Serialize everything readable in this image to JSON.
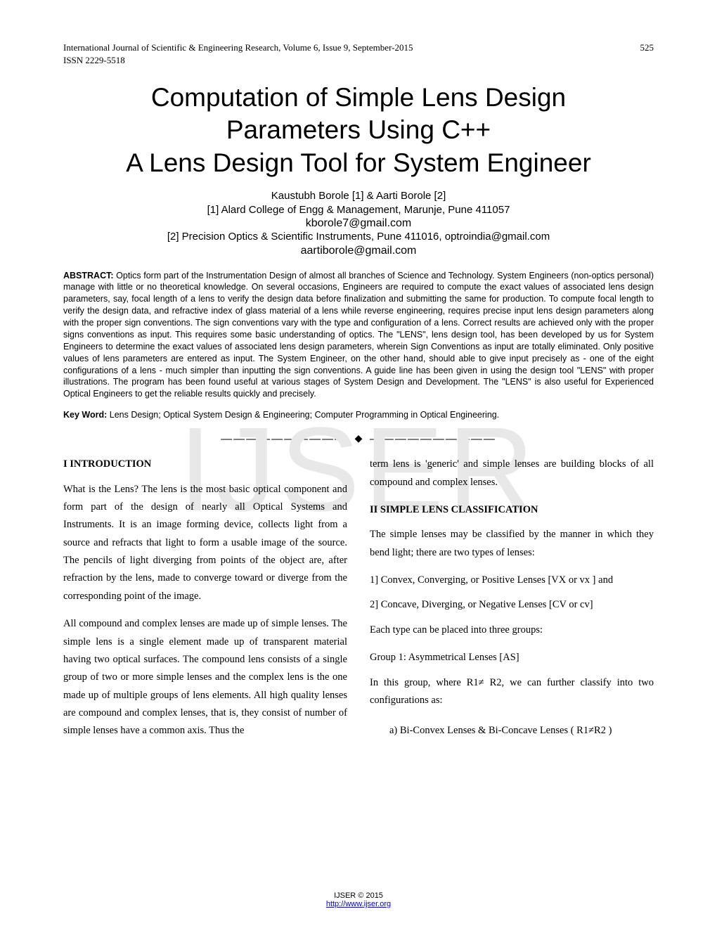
{
  "header": {
    "journal": "International Journal of Scientific & Engineering Research, Volume 6, Issue 9, September-2015",
    "page_number": "525",
    "issn": "ISSN 2229-5518"
  },
  "title": {
    "line1": "Computation of Simple Lens Design",
    "line2": "Parameters Using C++",
    "line3": "A Lens Design Tool for System Engineer"
  },
  "authors": {
    "names": "Kaustubh  Borole  [1]  & Aarti Borole [2]",
    "affil1": "[1] Alard College of Engg & Management, Marunje, Pune 411057",
    "email1": "kborole7@gmail.com",
    "affil2": "[2] Precision Optics & Scientific Instruments, Pune 411016, optroindia@gmail.com",
    "email2": "aartiborole@gmail.com"
  },
  "abstract": {
    "label": "ABSTRACT:",
    "text": " Optics form part of the Instrumentation Design of almost all branches of Science and Technology. System Engineers (non-optics personal) manage with little or no theoretical knowledge. On several occasions, Engineers are required to compute the exact values of associated lens design parameters, say, focal length of a lens to verify the design data before finalization and submitting the same for production. To compute focal length to verify the design data,  and refractive index of glass material of a lens while reverse engineering, requires precise input lens design parameters along with the proper sign conventions. The sign conventions vary with the type and configuration of a lens. Correct results are achieved only with the proper signs conventions as input. This requires some basic understanding of optics.  The \"LENS\", lens design tool, has been developed by us for System Engineers to determine the exact values of associated lens design parameters, wherein Sign Conventions as input are totally eliminated. Only positive values of lens parameters are entered as input. The System Engineer, on the other hand, should able to give input precisely as - one of the eight configurations of a lens - much simpler than inputting the sign conventions.    A guide line has been given in using the design tool \"LENS\" with proper illustrations. The program has been found useful at various stages of System Design and Development.  The \"LENS\" is also useful for Experienced Optical Engineers to get the reliable results quickly and precisely."
  },
  "keyword": {
    "label": "Key Word:",
    "text": " Lens Design; Optical System Design & Engineering; Computer Programming in Optical Engineering."
  },
  "separator": {
    "dashes": "——————————",
    "diamond": "◆"
  },
  "watermark": "IJSER",
  "left_column": {
    "heading": "I  INTRODUCTION",
    "p1": "What is the Lens?  The lens is the most basic optical component and form part of the design of nearly all Optical Systems and Instruments.  It is an image forming device, collects light from a source and refracts that light to form a usable image of the source. The pencils of light diverging from points of the object are, after refraction by the lens, made to converge toward or diverge from the corresponding point of the image.",
    "p2": "All compound and complex lenses are made up of simple lenses. The simple lens is a single element made up of transparent material having two optical surfaces. The compound lens consists of a single group of two or more simple lenses and the complex lens is the one made up of multiple groups of lens elements. All high quality lenses are compound and complex lenses, that is, they consist of number of simple lenses have a common axis. Thus the"
  },
  "right_column": {
    "p_top": "term lens is 'generic' and simple lenses are building blocks of all compound and complex lenses.",
    "heading": "II SIMPLE LENS CLASSIFICATION",
    "p1": "The simple lenses may be classified by the manner in which they bend light; there are two types of lenses:",
    "item1": "1] Convex, Converging, or Positive Lenses [VX or vx ] and",
    "item2": "2] Concave, Diverging, or Negative Lenses [CV or cv]",
    "p2": "Each type can be placed into three groups:",
    "group1": "Group 1:   Asymmetrical Lenses [AS]",
    "p3": "In this group, where R1≠ R2, we can further classify into two configurations as:",
    "sub_a": "a)    Bi-Convex Lenses & Bi-Concave Lenses ( R1≠R2 )"
  },
  "footer": {
    "copyright": "IJSER © 2015",
    "link": "http://www.ijser.org"
  }
}
